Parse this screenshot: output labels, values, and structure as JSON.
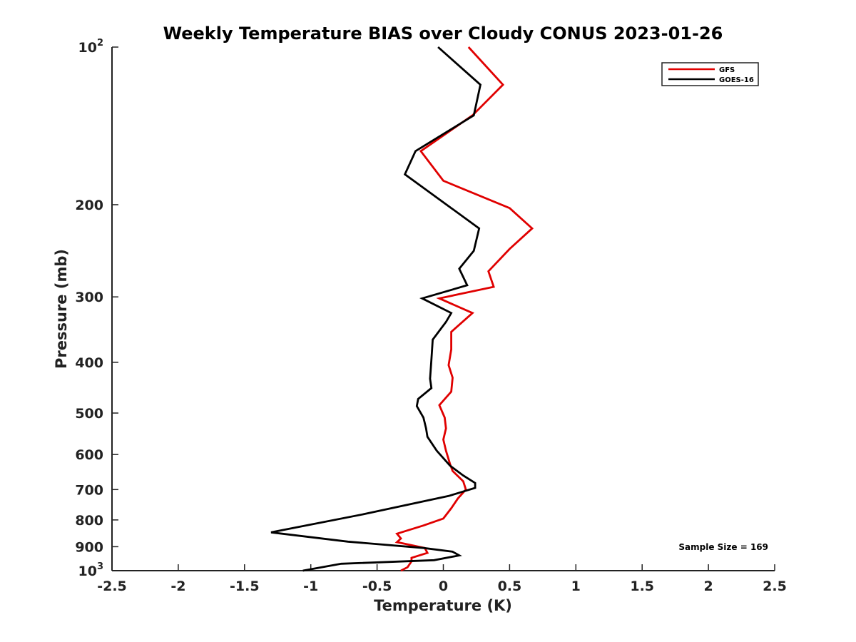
{
  "chart_data": {
    "type": "line",
    "title": "Weekly Temperature BIAS over Cloudy CONUS 2023-01-26",
    "xlabel": "Temperature (K)",
    "ylabel": "Pressure (mb)",
    "xlim": [
      -2.5,
      2.5
    ],
    "ylim": [
      1000,
      100
    ],
    "y_scale": "log",
    "y_reversed": true,
    "x_ticks": [
      -2.5,
      -2,
      -1.5,
      -1,
      -0.5,
      0,
      0.5,
      1,
      1.5,
      2,
      2.5
    ],
    "x_tick_labels": [
      "-2.5",
      "-2",
      "-1.5",
      "-1",
      "-0.5",
      "0",
      "0.5",
      "1",
      "1.5",
      "2",
      "2.5"
    ],
    "y_ticks": [
      100,
      200,
      300,
      400,
      500,
      600,
      700,
      800,
      900,
      1000
    ],
    "y_tick_labels": [
      {
        "base": "10",
        "exp": "2"
      },
      {
        "base": "200",
        "exp": ""
      },
      {
        "base": "300",
        "exp": ""
      },
      {
        "base": "400",
        "exp": ""
      },
      {
        "base": "500",
        "exp": ""
      },
      {
        "base": "600",
        "exp": ""
      },
      {
        "base": "700",
        "exp": ""
      },
      {
        "base": "800",
        "exp": ""
      },
      {
        "base": "900",
        "exp": ""
      },
      {
        "base": "10",
        "exp": "3"
      }
    ],
    "grid": false,
    "legend_position": "top-right",
    "annotation": "Sample Size = 169",
    "series": [
      {
        "name": "GFS",
        "color": "#e00000",
        "points": [
          [
            0.19,
            100
          ],
          [
            0.45,
            118
          ],
          [
            0.22,
            135
          ],
          [
            -0.17,
            158
          ],
          [
            -0.0,
            180
          ],
          [
            0.5,
            203
          ],
          [
            0.67,
            222
          ],
          [
            0.5,
            243
          ],
          [
            0.34,
            268
          ],
          [
            0.38,
            287
          ],
          [
            -0.03,
            302
          ],
          [
            0.22,
            322
          ],
          [
            0.06,
            350
          ],
          [
            0.06,
            378
          ],
          [
            0.04,
            405
          ],
          [
            0.07,
            428
          ],
          [
            0.06,
            455
          ],
          [
            -0.03,
            483
          ],
          [
            0.01,
            510
          ],
          [
            0.02,
            535
          ],
          [
            0.0,
            562
          ],
          [
            0.02,
            590
          ],
          [
            0.05,
            625
          ],
          [
            0.07,
            645
          ],
          [
            0.15,
            675
          ],
          [
            0.17,
            700
          ],
          [
            0.11,
            728
          ],
          [
            0.06,
            760
          ],
          [
            0.0,
            795
          ],
          [
            -0.15,
            820
          ],
          [
            -0.35,
            850
          ],
          [
            -0.32,
            868
          ],
          [
            -0.35,
            882
          ],
          [
            -0.14,
            905
          ],
          [
            -0.12,
            925
          ],
          [
            -0.24,
            945
          ],
          [
            -0.24,
            960
          ],
          [
            -0.27,
            985
          ],
          [
            -0.32,
            1000
          ]
        ]
      },
      {
        "name": "GOES-16",
        "color": "#000000",
        "points": [
          [
            -0.04,
            100
          ],
          [
            0.28,
            118
          ],
          [
            0.23,
            135
          ],
          [
            -0.21,
            158
          ],
          [
            -0.29,
            175
          ],
          [
            0.06,
            203
          ],
          [
            0.27,
            222
          ],
          [
            0.23,
            245
          ],
          [
            0.12,
            265
          ],
          [
            0.18,
            285
          ],
          [
            -0.16,
            302
          ],
          [
            0.06,
            322
          ],
          [
            0.02,
            335
          ],
          [
            -0.08,
            362
          ],
          [
            -0.09,
            395
          ],
          [
            -0.1,
            430
          ],
          [
            -0.09,
            448
          ],
          [
            -0.19,
            470
          ],
          [
            -0.2,
            485
          ],
          [
            -0.15,
            510
          ],
          [
            -0.13,
            535
          ],
          [
            -0.12,
            555
          ],
          [
            -0.05,
            590
          ],
          [
            0.05,
            630
          ],
          [
            0.15,
            658
          ],
          [
            0.24,
            680
          ],
          [
            0.24,
            695
          ],
          [
            0.04,
            720
          ],
          [
            -0.6,
            780
          ],
          [
            -1.3,
            845
          ],
          [
            -0.72,
            880
          ],
          [
            -0.15,
            905
          ],
          [
            0.07,
            920
          ],
          [
            0.12,
            935
          ],
          [
            -0.07,
            955
          ],
          [
            -0.77,
            970
          ],
          [
            -1.06,
            1000
          ]
        ]
      }
    ]
  }
}
